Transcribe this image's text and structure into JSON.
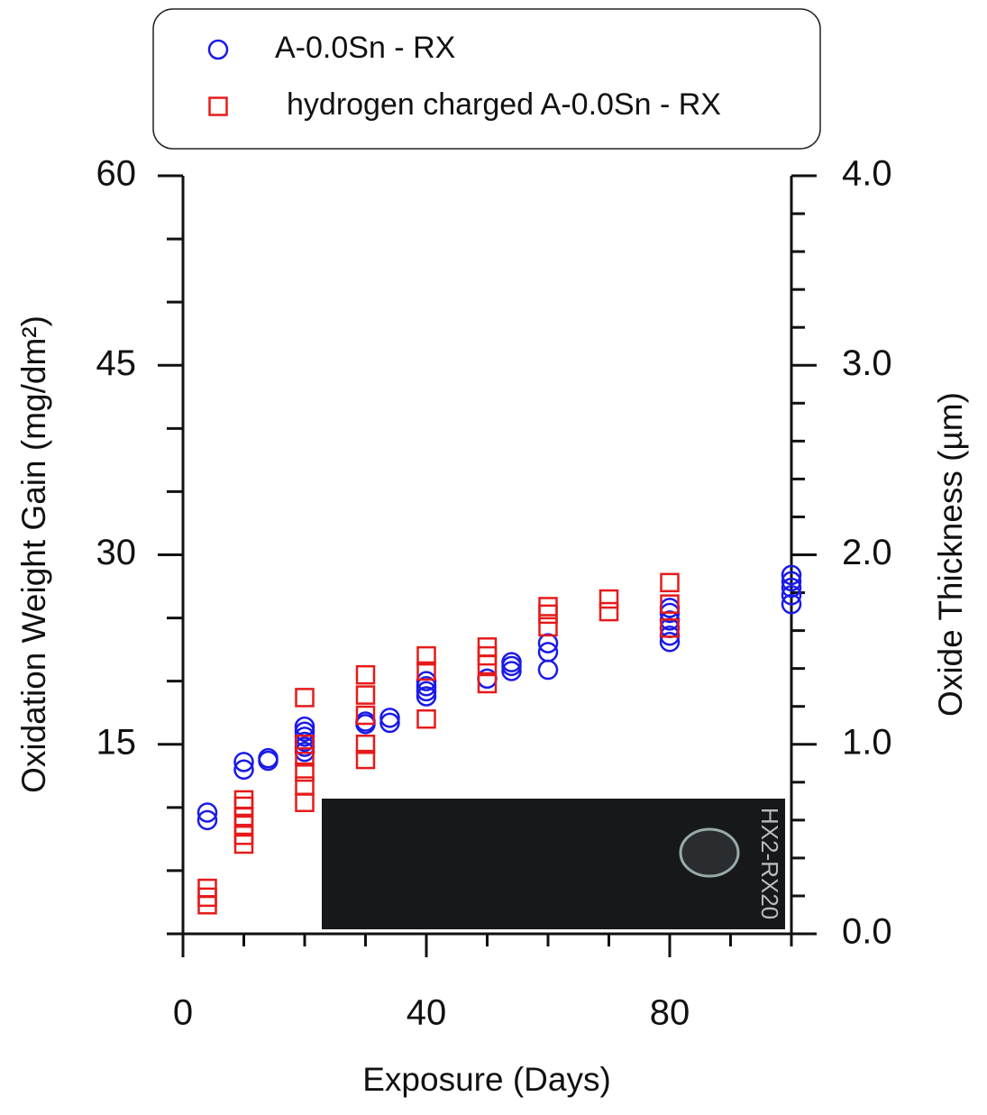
{
  "chart_data": {
    "type": "scatter",
    "xlabel": "Exposure (Days)",
    "ylabel": "Oxidation Weight Gain (mg/dm²)",
    "y2label": "Oxide Thickness (µm)",
    "xlim": [
      0,
      100
    ],
    "xticks": [
      0,
      40,
      80
    ],
    "xminor_ticks": [
      10,
      20,
      30,
      50,
      60,
      70,
      90,
      100
    ],
    "ylim": [
      0,
      60
    ],
    "yticks": [
      15,
      30,
      45,
      60
    ],
    "yminor_ticks": [
      0,
      5,
      10,
      20,
      25,
      35,
      40,
      50,
      55
    ],
    "y2lim": [
      0,
      4
    ],
    "y2ticks": [
      {
        "value": 0,
        "label": "0.0"
      },
      {
        "value": 1,
        "label": "1.0"
      },
      {
        "value": 2,
        "label": "2.0"
      },
      {
        "value": 3,
        "label": "3.0"
      },
      {
        "value": 4,
        "label": "4.0"
      }
    ],
    "y2minor_ticks": [
      0.2,
      0.4,
      0.6,
      0.8,
      1.2,
      1.4,
      1.6,
      1.8,
      2.2,
      2.4,
      2.6,
      2.8,
      3.2,
      3.4,
      3.6,
      3.8
    ],
    "inset_text": "HX2-RX20",
    "series": [
      {
        "name": "A-0.0Sn  - RX",
        "color": "#1a1ae6",
        "marker": "circle",
        "x": [
          4,
          4,
          10,
          10,
          14,
          14,
          20,
          20,
          20,
          20,
          20,
          20,
          30,
          30,
          34,
          34,
          40,
          40,
          40,
          40,
          50,
          54,
          54,
          54,
          60,
          60,
          60,
          80,
          80,
          80,
          80,
          80,
          80,
          100,
          100,
          100,
          100,
          100
        ],
        "values": [
          9.0,
          9.6,
          13.0,
          13.6,
          13.7,
          13.9,
          14.4,
          14.8,
          15.2,
          15.6,
          16.0,
          16.4,
          16.6,
          16.8,
          16.7,
          17.1,
          18.8,
          19.2,
          19.6,
          20.0,
          20.2,
          20.8,
          21.2,
          21.5,
          20.9,
          22.3,
          23.0,
          23.1,
          23.6,
          24.2,
          24.8,
          25.4,
          25.8,
          26.1,
          26.8,
          27.4,
          27.9,
          28.4
        ]
      },
      {
        "name": "hydrogen charged A-0.0Sn - RX",
        "color": "#e61a1a",
        "marker": "square",
        "x": [
          4,
          4,
          4,
          10,
          10,
          10,
          10,
          10,
          10,
          20,
          20,
          20,
          20,
          20,
          20,
          30,
          30,
          30,
          30,
          30,
          40,
          40,
          40,
          50,
          50,
          50,
          50,
          60,
          60,
          60,
          70,
          70,
          80,
          80,
          80
        ],
        "values": [
          2.3,
          2.9,
          3.6,
          7.1,
          7.8,
          8.6,
          9.3,
          10.1,
          10.6,
          10.4,
          11.7,
          12.8,
          14.0,
          15.0,
          18.7,
          13.8,
          15.0,
          17.3,
          18.9,
          20.5,
          17.0,
          20.8,
          22.0,
          19.8,
          21.3,
          22.0,
          22.7,
          24.3,
          25.3,
          25.9,
          25.5,
          26.5,
          24.2,
          26.1,
          27.8
        ]
      }
    ]
  }
}
